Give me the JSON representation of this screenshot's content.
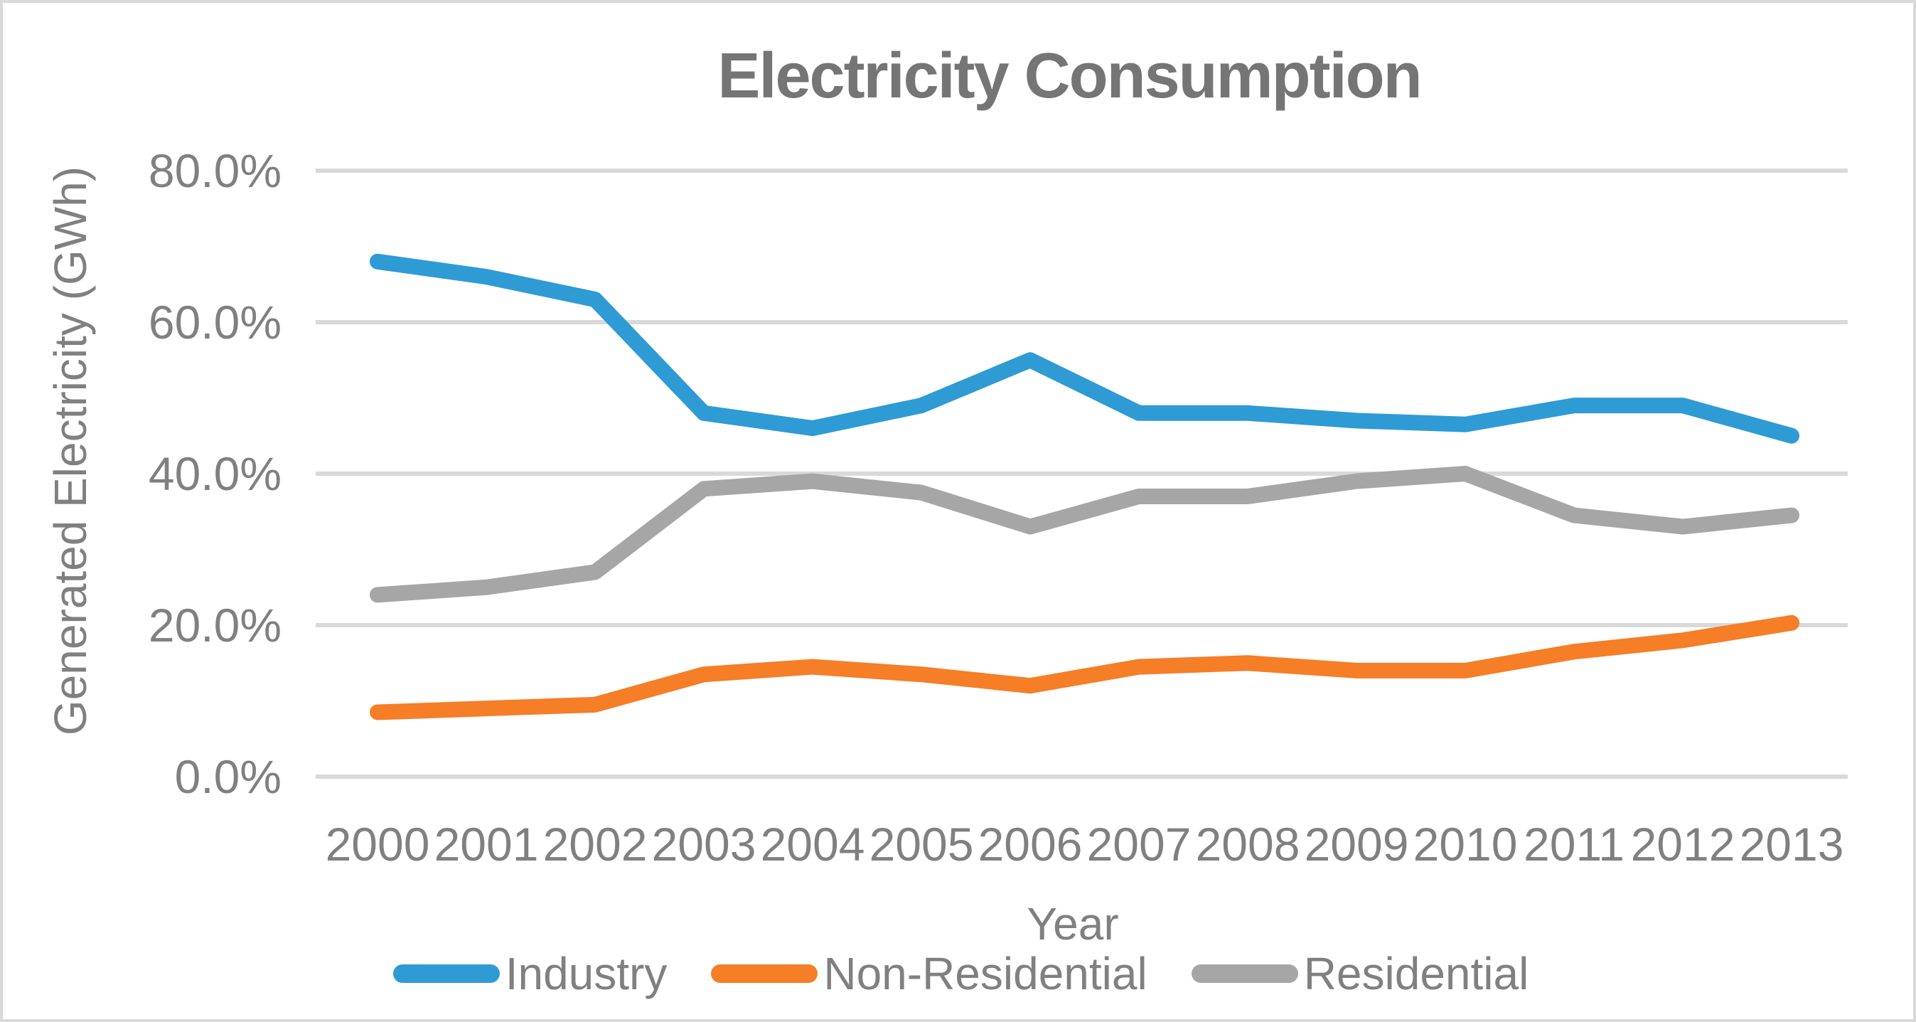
{
  "frame": {
    "background_color": "#ffffff",
    "border_color": "#d9d9d9"
  },
  "chart_data": {
    "type": "line",
    "title": "Electricity Consumption",
    "xlabel": "Year",
    "ylabel": "Generated Electricity (GWh)",
    "categories": [
      "2000",
      "2001",
      "2002",
      "2003",
      "2004",
      "2005",
      "2006",
      "2007",
      "2008",
      "2009",
      "2010",
      "2011",
      "2012",
      "2013"
    ],
    "y_tick_labels": [
      "80.0%",
      "60.0%",
      "40.0%",
      "20.0%",
      "0.0%"
    ],
    "y_tick_values": [
      80,
      60,
      40,
      20,
      0
    ],
    "ylim": [
      0,
      80
    ],
    "grid": true,
    "legend_position": "bottom",
    "colors": {
      "gridline": "#d9d9d9",
      "tick_text": "#808080",
      "axis_title_text": "#808080",
      "title_text": "#757575"
    },
    "series": [
      {
        "name": "Industry",
        "color": "#2e9bd5",
        "values": [
          68,
          66,
          63,
          48,
          46,
          49,
          55,
          48,
          48,
          47,
          46.5,
          49,
          49,
          45
        ]
      },
      {
        "name": "Non-Residential",
        "color": "#f57e27",
        "values": [
          8.5,
          9,
          9.5,
          13.5,
          14.5,
          13.5,
          12,
          14.5,
          15,
          14,
          14,
          16.5,
          18,
          20.3
        ]
      },
      {
        "name": "Residential",
        "color": "#a6a6a6",
        "values": [
          24,
          25,
          27,
          38,
          39,
          37.5,
          33,
          37,
          37,
          39,
          40,
          34.5,
          33,
          34.5
        ]
      }
    ]
  }
}
